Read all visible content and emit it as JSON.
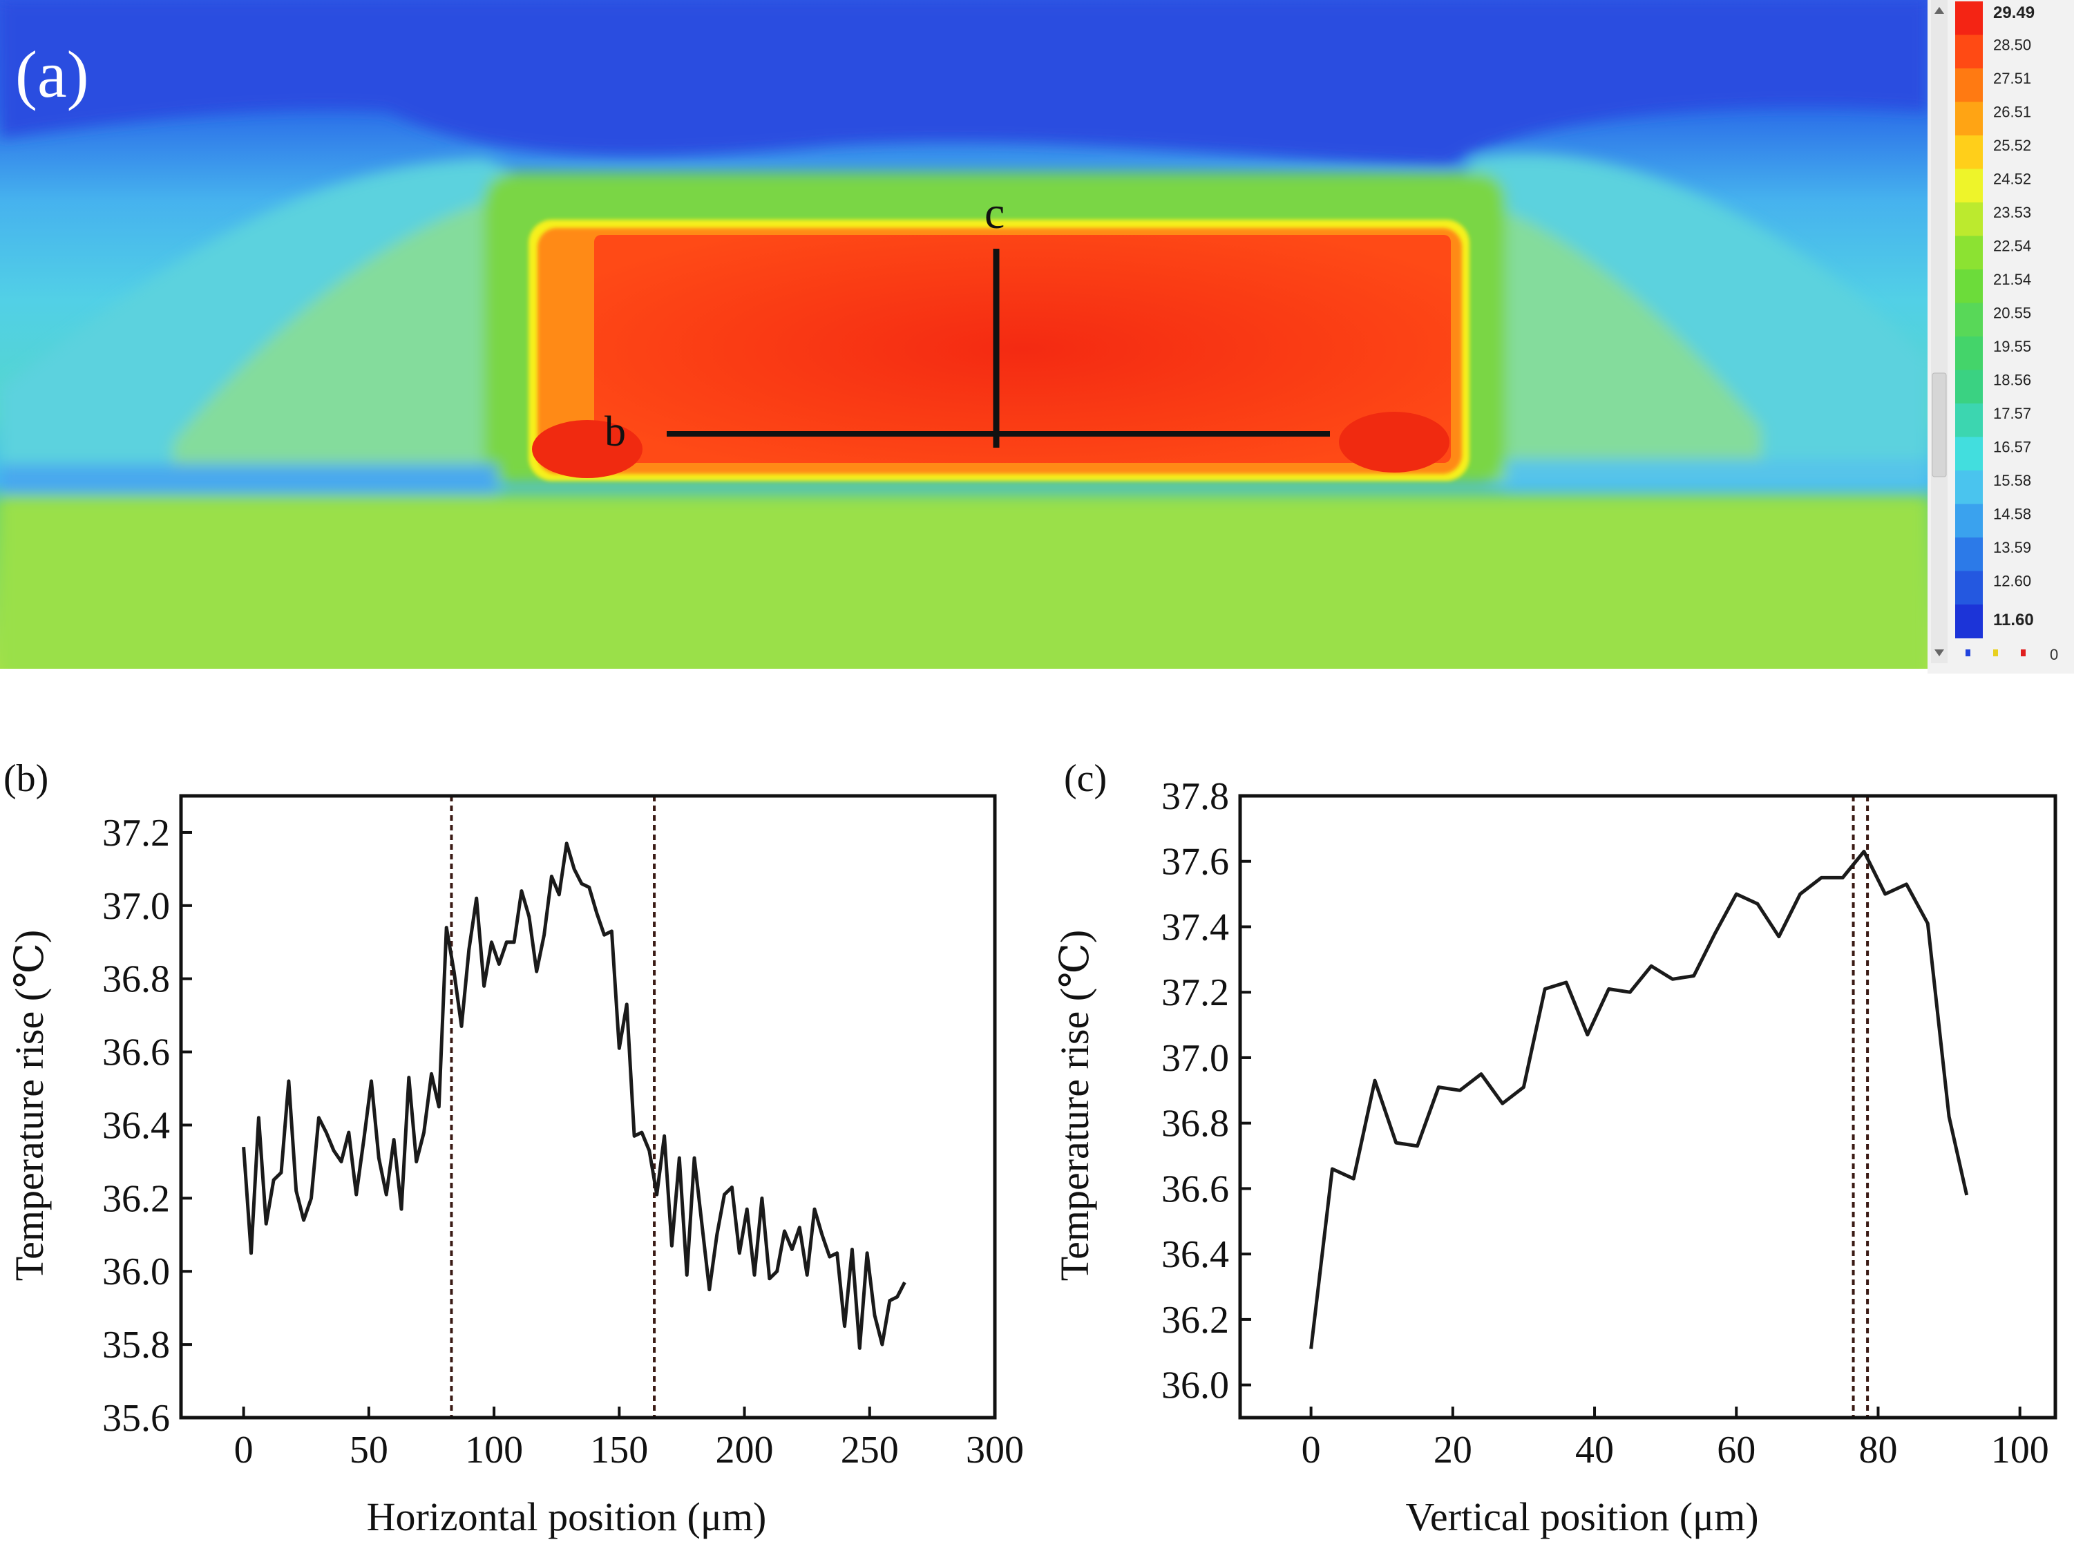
{
  "thermal_image": {
    "panel_label": "(a)",
    "line_b_label": "b",
    "line_c_label": "c",
    "colorbar": {
      "values": [
        "29.49",
        "28.50",
        "27.51",
        "26.51",
        "25.52",
        "24.52",
        "23.53",
        "22.54",
        "21.54",
        "20.55",
        "19.55",
        "18.56",
        "17.57",
        "16.57",
        "15.58",
        "14.58",
        "13.59",
        "12.60",
        "11.60"
      ],
      "colors": [
        "#f42414",
        "#ff4a14",
        "#ff7a12",
        "#ffa414",
        "#ffcf1a",
        "#eef42a",
        "#bcea2e",
        "#8ce232",
        "#6cdc3a",
        "#58d858",
        "#44d46a",
        "#3ad282",
        "#3cd6b0",
        "#42dede",
        "#4ac4ee",
        "#3aa2ee",
        "#2c7ae8",
        "#2458e0",
        "#1c34d8"
      ],
      "footer_value": "0",
      "footer_marker_colors": [
        "#2244dd",
        "#e8d020",
        "#e02020"
      ]
    }
  },
  "chart_data": [
    {
      "type": "line",
      "panel_label": "(b)",
      "xlabel": "Horizontal position (μm)",
      "ylabel": "Temperature rise (℃)",
      "xlim": [
        -25,
        300
      ],
      "ylim": [
        35.6,
        37.3
      ],
      "xticks": [
        0,
        50,
        100,
        150,
        200,
        250,
        300
      ],
      "yticks": [
        35.6,
        35.8,
        36.0,
        36.2,
        36.4,
        36.6,
        36.8,
        37.0,
        37.2
      ],
      "vlines": [
        83,
        164
      ],
      "line_color": "#1a1a1a",
      "series": [
        {
          "x": [
            0,
            3,
            6,
            9,
            12,
            15,
            18,
            21,
            24,
            27,
            30,
            33,
            36,
            39,
            42,
            45,
            48,
            51,
            54,
            57,
            60,
            63,
            66,
            69,
            72,
            75,
            78,
            81,
            84,
            87,
            90,
            93,
            96,
            99,
            102,
            105,
            108,
            111,
            114,
            117,
            120,
            123,
            126,
            129,
            132,
            135,
            138,
            141,
            144,
            147,
            150,
            153,
            156,
            159,
            162,
            165,
            168,
            171,
            174,
            177,
            180,
            183,
            186,
            189,
            192,
            195,
            198,
            201,
            204,
            207,
            210,
            213,
            216,
            219,
            222,
            225,
            228,
            231,
            234,
            237,
            240,
            243,
            246,
            249,
            252,
            255,
            258,
            261,
            264
          ],
          "y": [
            36.34,
            36.05,
            36.42,
            36.13,
            36.25,
            36.27,
            36.52,
            36.22,
            36.14,
            36.2,
            36.42,
            36.38,
            36.33,
            36.3,
            36.38,
            36.21,
            36.36,
            36.52,
            36.31,
            36.21,
            36.36,
            36.17,
            36.53,
            36.3,
            36.38,
            36.54,
            36.45,
            36.94,
            36.82,
            36.67,
            36.88,
            37.02,
            36.78,
            36.9,
            36.84,
            36.9,
            36.9,
            37.04,
            36.97,
            36.82,
            36.92,
            37.08,
            37.03,
            37.17,
            37.1,
            37.06,
            37.05,
            36.98,
            36.92,
            36.93,
            36.61,
            36.73,
            36.37,
            36.38,
            36.33,
            36.21,
            36.37,
            36.07,
            36.31,
            35.99,
            36.31,
            36.13,
            35.95,
            36.1,
            36.21,
            36.23,
            36.05,
            36.17,
            35.99,
            36.2,
            35.98,
            36.0,
            36.11,
            36.06,
            36.12,
            35.99,
            36.17,
            36.1,
            36.04,
            36.05,
            35.85,
            36.06,
            35.79,
            36.05,
            35.88,
            35.8,
            35.92,
            35.93,
            35.97
          ]
        }
      ]
    },
    {
      "type": "line",
      "panel_label": "(c)",
      "xlabel": "Vertical position (μm)",
      "ylabel": "Temperature rise (℃)",
      "xlim": [
        -10,
        105
      ],
      "ylim": [
        35.9,
        37.8
      ],
      "xticks": [
        0,
        20,
        40,
        60,
        80,
        100
      ],
      "yticks": [
        36.0,
        36.2,
        36.4,
        36.6,
        36.8,
        37.0,
        37.2,
        37.4,
        37.6,
        37.8
      ],
      "vlines": [
        76.5,
        78.5
      ],
      "line_color": "#1a1a1a",
      "series": [
        {
          "x": [
            0,
            3,
            6,
            9,
            12,
            15,
            18,
            21,
            24,
            27,
            30,
            33,
            36,
            39,
            42,
            45,
            48,
            51,
            54,
            57,
            60,
            63,
            66,
            69,
            72,
            75,
            78,
            81,
            84,
            87,
            90,
            92.5
          ],
          "y": [
            36.11,
            36.66,
            36.63,
            36.93,
            36.74,
            36.73,
            36.91,
            36.9,
            36.95,
            36.86,
            36.91,
            37.21,
            37.23,
            37.07,
            37.21,
            37.2,
            37.28,
            37.24,
            37.25,
            37.38,
            37.5,
            37.47,
            37.37,
            37.5,
            37.55,
            37.55,
            37.63,
            37.5,
            37.53,
            37.41,
            36.82,
            36.58
          ]
        }
      ]
    }
  ]
}
